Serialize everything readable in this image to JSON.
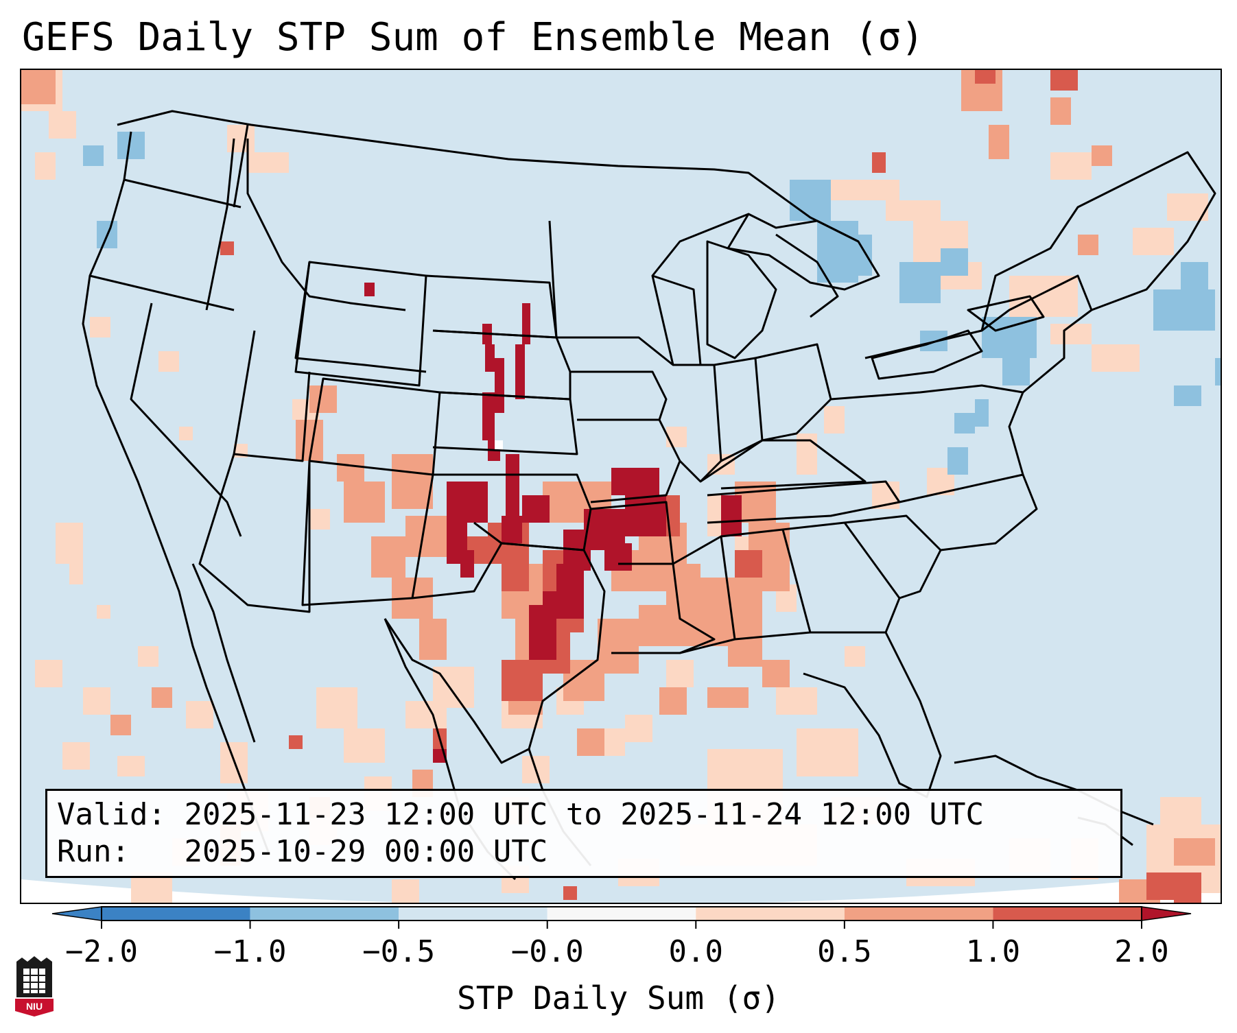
{
  "title": "GEFS Daily STP Sum of Ensemble Mean (σ)",
  "info": {
    "valid_label": "Valid:",
    "valid_value": "2025-11-23 12:00 UTC to 2025-11-24 12:00 UTC",
    "run_label": "Run:",
    "run_value": "2025-10-29 00:00 UTC"
  },
  "colorbar": {
    "label": "STP Daily Sum (σ)",
    "ticks": [
      "−2.0",
      "−1.0",
      "−0.5",
      "−0.0",
      "0.0",
      "0.5",
      "1.0",
      "2.0"
    ],
    "colors": [
      "#3b82c4",
      "#8ec1df",
      "#d3e5f0",
      "#f7f7f7",
      "#fcd8c4",
      "#f1a184",
      "#d85a4d",
      "#b0142a"
    ]
  },
  "logo": {
    "text": "NIU"
  },
  "map": {
    "background_color": "#d3e5f0",
    "region": "CONUS"
  }
}
